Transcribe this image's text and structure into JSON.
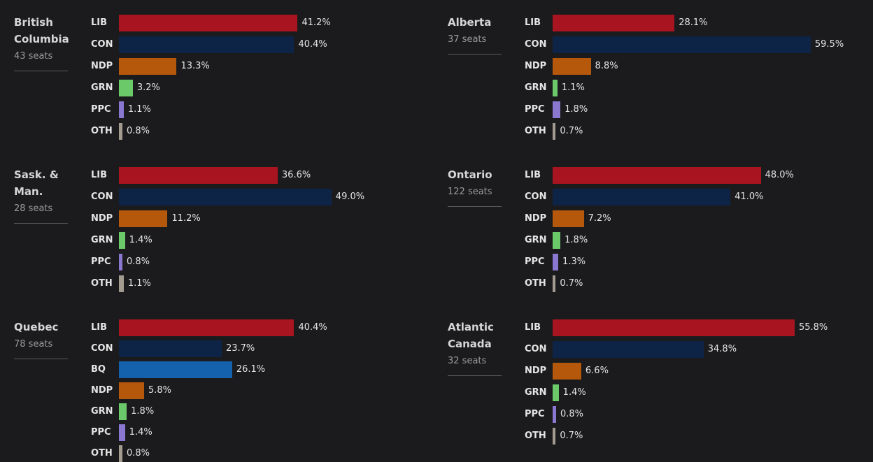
{
  "colors": {
    "LIB": "#a8141f",
    "CON": "#0e2447",
    "NDP": "#b5580b",
    "GRN": "#6cc96a",
    "PPC": "#8a77cf",
    "OTH": "#a49b90",
    "BQ": "#1461ad"
  },
  "chart_data": [
    {
      "type": "bar",
      "name_lines": [
        "British",
        "Columbia"
      ],
      "seats": "43 seats",
      "categories": [
        "LIB",
        "CON",
        "NDP",
        "GRN",
        "PPC",
        "OTH"
      ],
      "values": [
        41.2,
        40.4,
        13.3,
        3.2,
        1.1,
        0.8
      ],
      "labels": [
        "41.2%",
        "40.4%",
        "13.3%",
        "3.2%",
        "1.1%",
        "0.8%"
      ]
    },
    {
      "type": "bar",
      "name_lines": [
        "Alberta"
      ],
      "seats": "37 seats",
      "categories": [
        "LIB",
        "CON",
        "NDP",
        "GRN",
        "PPC",
        "OTH"
      ],
      "values": [
        28.1,
        59.5,
        8.8,
        1.1,
        1.8,
        0.7
      ],
      "labels": [
        "28.1%",
        "59.5%",
        "8.8%",
        "1.1%",
        "1.8%",
        "0.7%"
      ]
    },
    {
      "type": "bar",
      "name_lines": [
        "Sask. &",
        "Man."
      ],
      "seats": "28 seats",
      "categories": [
        "LIB",
        "CON",
        "NDP",
        "GRN",
        "PPC",
        "OTH"
      ],
      "values": [
        36.6,
        49.0,
        11.2,
        1.4,
        0.8,
        1.1
      ],
      "labels": [
        "36.6%",
        "49.0%",
        "11.2%",
        "1.4%",
        "0.8%",
        "1.1%"
      ]
    },
    {
      "type": "bar",
      "name_lines": [
        "Ontario"
      ],
      "seats": "122 seats",
      "categories": [
        "LIB",
        "CON",
        "NDP",
        "GRN",
        "PPC",
        "OTH"
      ],
      "values": [
        48.0,
        41.0,
        7.2,
        1.8,
        1.3,
        0.7
      ],
      "labels": [
        "48.0%",
        "41.0%",
        "7.2%",
        "1.8%",
        "1.3%",
        "0.7%"
      ]
    },
    {
      "type": "bar",
      "name_lines": [
        "Quebec"
      ],
      "seats": "78 seats",
      "categories": [
        "LIB",
        "CON",
        "BQ",
        "NDP",
        "GRN",
        "PPC",
        "OTH"
      ],
      "values": [
        40.4,
        23.7,
        26.1,
        5.8,
        1.8,
        1.4,
        0.8
      ],
      "labels": [
        "40.4%",
        "23.7%",
        "26.1%",
        "5.8%",
        "1.8%",
        "1.4%",
        "0.8%"
      ]
    },
    {
      "type": "bar",
      "name_lines": [
        "Atlantic",
        "Canada"
      ],
      "seats": "32 seats",
      "categories": [
        "LIB",
        "CON",
        "NDP",
        "GRN",
        "PPC",
        "OTH"
      ],
      "values": [
        55.8,
        34.8,
        6.6,
        1.4,
        0.8,
        0.7
      ],
      "labels": [
        "55.8%",
        "34.8%",
        "6.6%",
        "1.4%",
        "0.8%",
        "0.7%"
      ]
    }
  ]
}
